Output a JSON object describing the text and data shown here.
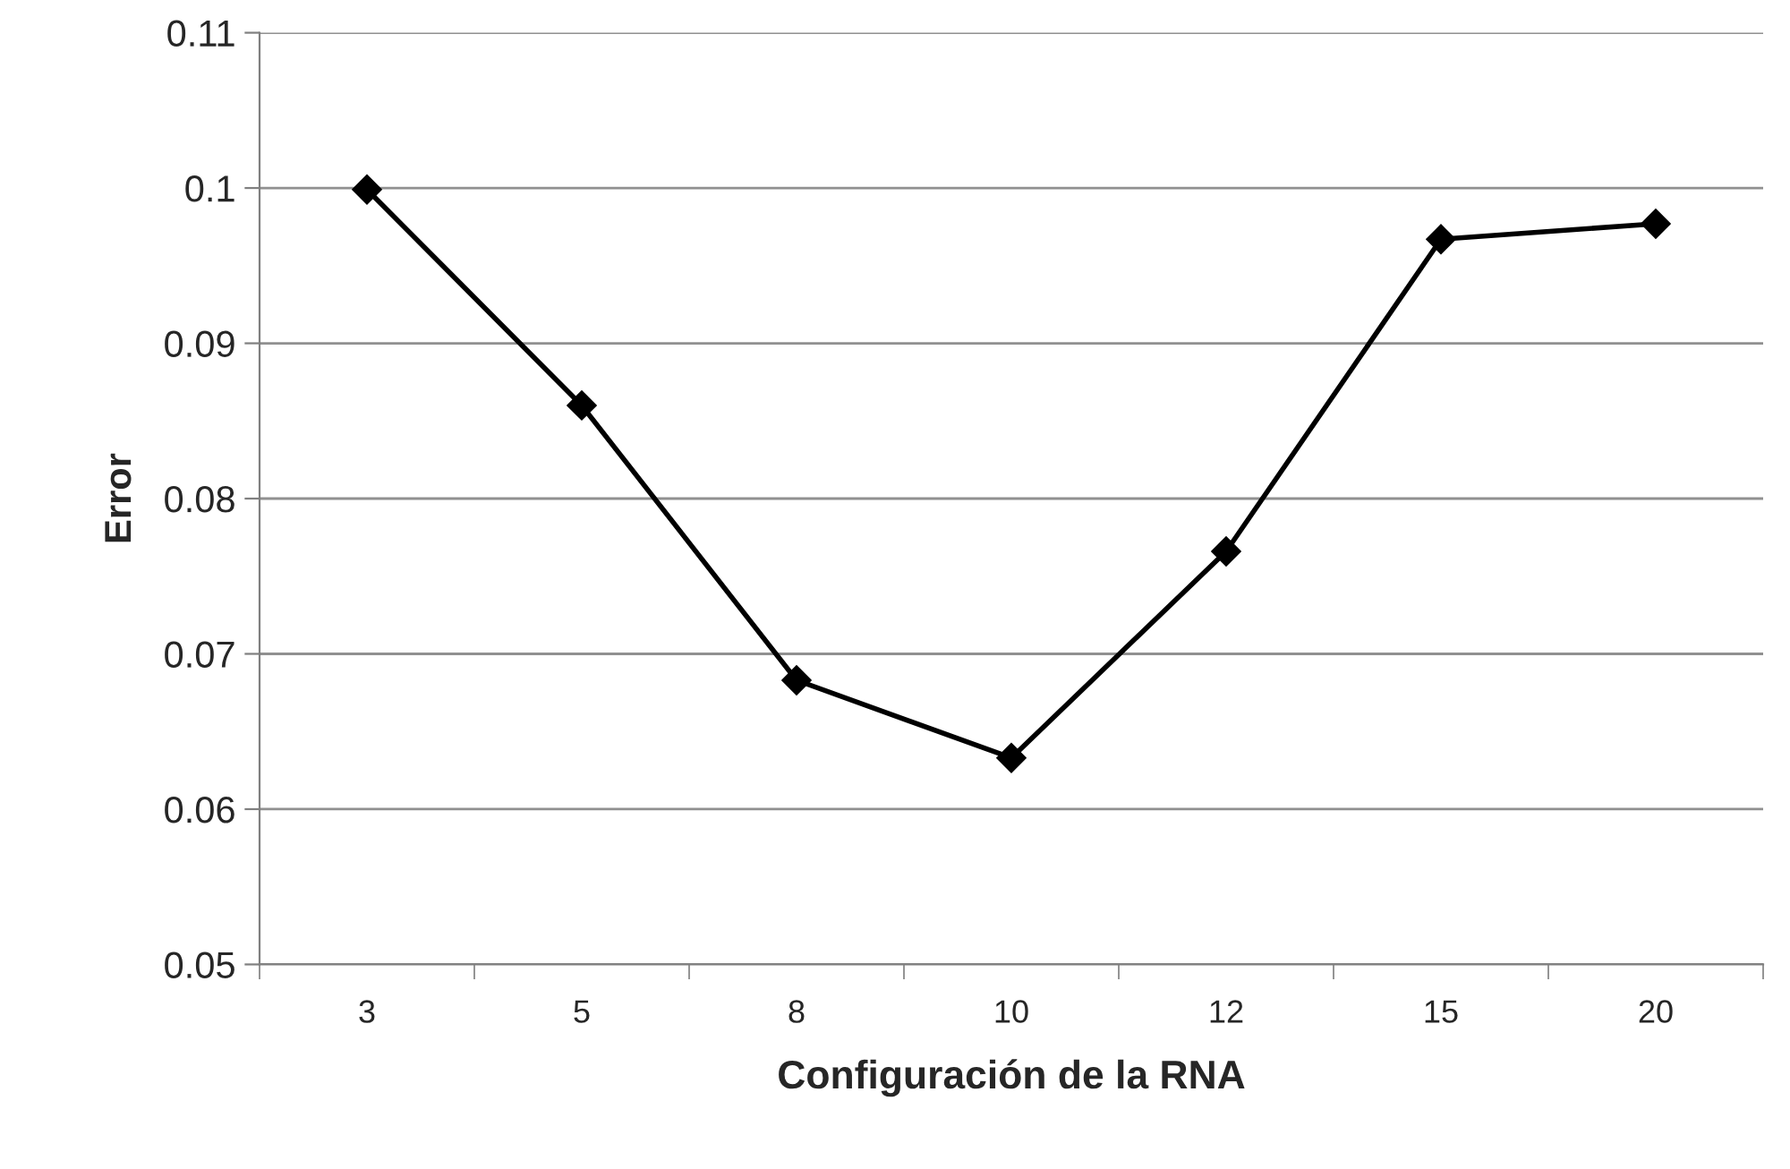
{
  "chart_data": {
    "type": "line",
    "xlabel": "Configuración de la RNA",
    "ylabel": "Error",
    "categories": [
      "3",
      "5",
      "8",
      "10",
      "12",
      "15",
      "20"
    ],
    "series": [
      {
        "color": "#000000",
        "values": [
          0.0999,
          0.086,
          0.0683,
          0.0633,
          0.0766,
          0.0967,
          0.0977
        ]
      }
    ],
    "ylim": [
      0.05,
      0.11
    ],
    "yticks": [
      0.05,
      0.06,
      0.07,
      0.08,
      0.09,
      0.1,
      0.11
    ],
    "grid": "y",
    "marker": "diamond",
    "line_style": "solid"
  }
}
